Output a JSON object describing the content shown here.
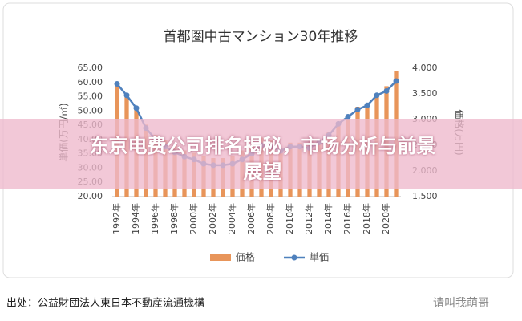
{
  "chart_data": {
    "type": "combo",
    "title": "首都圏中古マンション30年推移",
    "ylabel": "単価(万円/㎡)",
    "y2label": "価格(万円)",
    "categories": [
      "1992年",
      null,
      "1994年",
      null,
      "1996年",
      null,
      "1998年",
      null,
      "2000年",
      null,
      "2002年",
      null,
      "2004年",
      null,
      "2006年",
      null,
      "2008年",
      null,
      "2010年",
      null,
      "2012年",
      null,
      "2014年",
      null,
      "2016年",
      null,
      "2018年",
      null,
      "2020年",
      null
    ],
    "series": [
      {
        "name": "価格",
        "type": "bar",
        "axis": "y2",
        "color": "#e8955a",
        "values": [
          3650,
          3500,
          3200,
          2900,
          2700,
          2600,
          2500,
          2400,
          2350,
          2300,
          2250,
          2250,
          2300,
          2400,
          2500,
          2650,
          2600,
          2450,
          2550,
          2550,
          2500,
          2600,
          2750,
          2950,
          3100,
          3250,
          3300,
          3450,
          3650,
          3950
        ]
      },
      {
        "name": "単価",
        "type": "line",
        "color": "#4f81bd",
        "values": [
          59.5,
          55.5,
          51,
          44,
          40,
          37.5,
          35.5,
          34,
          33,
          31.5,
          31,
          31,
          31.5,
          33,
          35,
          38,
          37.5,
          36,
          37.5,
          37.5,
          37,
          39,
          41.5,
          45.5,
          48,
          50.5,
          52,
          55.5,
          57,
          60.5
        ]
      }
    ],
    "ylim": [
      20,
      65
    ],
    "yticks": [
      {
        "value": 20,
        "label": "20.00"
      },
      {
        "value": 25,
        "label": "25.00"
      },
      {
        "value": 30,
        "label": "30.00"
      },
      {
        "value": 35,
        "label": "35.00"
      },
      {
        "value": 40,
        "label": "40.00"
      },
      {
        "value": 45,
        "label": "45.00"
      },
      {
        "value": 50,
        "label": "50.00"
      },
      {
        "value": 55,
        "label": "55.00"
      },
      {
        "value": 60,
        "label": "60.00"
      },
      {
        "value": 65,
        "label": "65.00"
      }
    ],
    "y2lim": [
      1500,
      4000
    ],
    "y2ticks": [
      {
        "value": 1500,
        "label": "1,500"
      },
      {
        "value": 2000,
        "label": "2,000"
      },
      {
        "value": 2500,
        "label": "2,500"
      },
      {
        "value": 3000,
        "label": "3,000"
      },
      {
        "value": 3500,
        "label": "3,500"
      },
      {
        "value": 4000,
        "label": "4,000"
      }
    ],
    "grid": false
  },
  "overlay_title": "东京电费公司排名揭秘，市场分析与前景展望",
  "source": "出处：公益財団法人東日本不動産流通機構",
  "watermark": "请叫我萌哥"
}
